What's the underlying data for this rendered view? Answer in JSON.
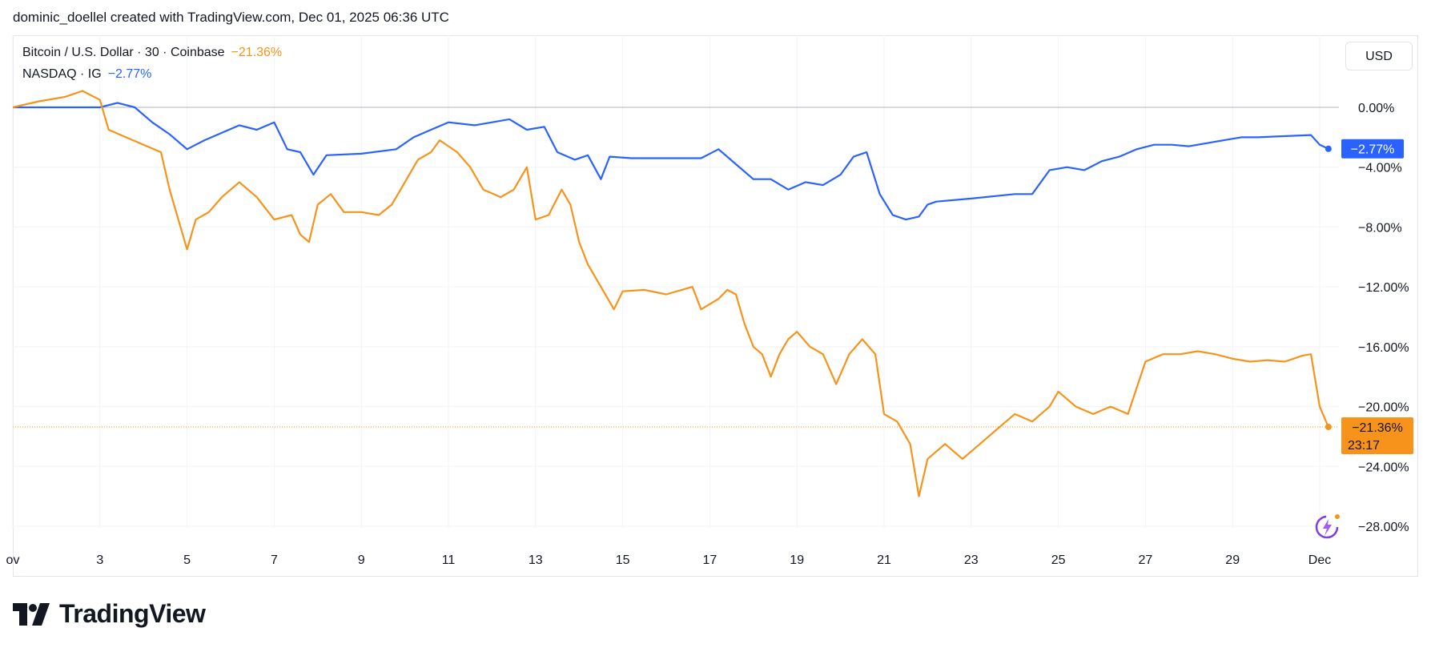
{
  "header": {
    "credit": "dominic_doellel created with TradingView.com, Dec 01, 2025 06:36 UTC"
  },
  "legend": {
    "btc_symbol": "Bitcoin / U.S. Dollar · 30 · Coinbase",
    "btc_change": "−21.36%",
    "ndx_symbol": "NASDAQ · IG",
    "ndx_change": "−2.77%"
  },
  "currency_button": {
    "label": "USD"
  },
  "price_labels": {
    "ndx_value": "−2.77%",
    "btc_value": "−21.36%",
    "btc_countdown": "23:17"
  },
  "footer": {
    "brand": "TradingView"
  },
  "colors": {
    "btc": "#f7931a",
    "ndx": "#2962ff",
    "zero_line": "#b2b5be",
    "grid": "#f0f3fa"
  },
  "icons": {
    "logo": "tradingview-logo-icon",
    "assistant": "ai-sparkle-icon"
  },
  "chart_data": {
    "type": "line",
    "x_unit": "date (Nov–Dec 2025)",
    "y_unit": "percent change",
    "ylim": [
      -28,
      0
    ],
    "y_ticks": [
      "0.00%",
      "−4.00%",
      "−8.00%",
      "−12.00%",
      "−16.00%",
      "−20.00%",
      "−24.00%",
      "−28.00%"
    ],
    "y_tick_values": [
      0,
      -4,
      -8,
      -12,
      -16,
      -20,
      -24,
      -28
    ],
    "x_ticks": [
      "ov",
      "3",
      "5",
      "7",
      "9",
      "11",
      "13",
      "15",
      "17",
      "19",
      "21",
      "23",
      "25",
      "27",
      "29",
      "Dec"
    ],
    "x_tick_days": [
      1,
      3,
      5,
      7,
      9,
      11,
      13,
      15,
      17,
      19,
      21,
      23,
      25,
      27,
      29,
      31
    ],
    "grid": true,
    "series": [
      {
        "name": "Bitcoin / U.S. Dollar · 30 · Coinbase",
        "color": "#f7931a",
        "points": [
          [
            1.0,
            0.0
          ],
          [
            1.6,
            0.4
          ],
          [
            2.2,
            0.7
          ],
          [
            2.6,
            1.1
          ],
          [
            3.0,
            0.5
          ],
          [
            3.2,
            -1.5
          ],
          [
            3.6,
            -2.0
          ],
          [
            4.0,
            -2.5
          ],
          [
            4.4,
            -3.0
          ],
          [
            4.6,
            -5.5
          ],
          [
            4.8,
            -7.5
          ],
          [
            5.0,
            -9.5
          ],
          [
            5.2,
            -7.5
          ],
          [
            5.5,
            -7.0
          ],
          [
            5.8,
            -6.0
          ],
          [
            6.2,
            -5.0
          ],
          [
            6.6,
            -6.0
          ],
          [
            7.0,
            -7.5
          ],
          [
            7.4,
            -7.2
          ],
          [
            7.6,
            -8.5
          ],
          [
            7.8,
            -9.0
          ],
          [
            8.0,
            -6.5
          ],
          [
            8.3,
            -5.8
          ],
          [
            8.6,
            -7.0
          ],
          [
            9.0,
            -7.0
          ],
          [
            9.4,
            -7.2
          ],
          [
            9.7,
            -6.5
          ],
          [
            10.0,
            -5.0
          ],
          [
            10.3,
            -3.5
          ],
          [
            10.6,
            -3.0
          ],
          [
            10.8,
            -2.2
          ],
          [
            11.2,
            -3.0
          ],
          [
            11.5,
            -4.0
          ],
          [
            11.8,
            -5.5
          ],
          [
            12.2,
            -6.0
          ],
          [
            12.5,
            -5.5
          ],
          [
            12.8,
            -4.0
          ],
          [
            13.0,
            -7.5
          ],
          [
            13.3,
            -7.2
          ],
          [
            13.6,
            -5.5
          ],
          [
            13.8,
            -6.5
          ],
          [
            14.0,
            -9.0
          ],
          [
            14.2,
            -10.5
          ],
          [
            14.5,
            -12.0
          ],
          [
            14.8,
            -13.5
          ],
          [
            15.0,
            -12.3
          ],
          [
            15.5,
            -12.2
          ],
          [
            16.0,
            -12.5
          ],
          [
            16.6,
            -12.0
          ],
          [
            16.8,
            -13.5
          ],
          [
            17.2,
            -12.8
          ],
          [
            17.4,
            -12.2
          ],
          [
            17.6,
            -12.5
          ],
          [
            17.8,
            -14.5
          ],
          [
            18.0,
            -16.0
          ],
          [
            18.2,
            -16.5
          ],
          [
            18.4,
            -18.0
          ],
          [
            18.6,
            -16.5
          ],
          [
            18.8,
            -15.5
          ],
          [
            19.0,
            -15.0
          ],
          [
            19.3,
            -16.0
          ],
          [
            19.6,
            -16.5
          ],
          [
            19.9,
            -18.5
          ],
          [
            20.2,
            -16.5
          ],
          [
            20.5,
            -15.5
          ],
          [
            20.8,
            -16.5
          ],
          [
            21.0,
            -20.5
          ],
          [
            21.3,
            -21.0
          ],
          [
            21.6,
            -22.5
          ],
          [
            21.8,
            -26.0
          ],
          [
            22.0,
            -23.5
          ],
          [
            22.4,
            -22.5
          ],
          [
            22.8,
            -23.5
          ],
          [
            23.2,
            -22.5
          ],
          [
            23.6,
            -21.5
          ],
          [
            24.0,
            -20.5
          ],
          [
            24.4,
            -21.0
          ],
          [
            24.8,
            -20.0
          ],
          [
            25.0,
            -19.0
          ],
          [
            25.4,
            -20.0
          ],
          [
            25.8,
            -20.5
          ],
          [
            26.2,
            -20.0
          ],
          [
            26.6,
            -20.5
          ],
          [
            27.0,
            -17.0
          ],
          [
            27.4,
            -16.5
          ],
          [
            27.8,
            -16.5
          ],
          [
            28.2,
            -16.3
          ],
          [
            28.6,
            -16.5
          ],
          [
            29.0,
            -16.8
          ],
          [
            29.4,
            -17.0
          ],
          [
            29.8,
            -16.9
          ],
          [
            30.2,
            -17.0
          ],
          [
            30.6,
            -16.6
          ],
          [
            30.8,
            -16.5
          ],
          [
            31.0,
            -20.0
          ],
          [
            31.2,
            -21.36
          ]
        ]
      },
      {
        "name": "NASDAQ · IG",
        "color": "#2962ff",
        "points": [
          [
            1.0,
            0.0
          ],
          [
            3.0,
            0.0
          ],
          [
            3.4,
            0.3
          ],
          [
            3.8,
            0.0
          ],
          [
            4.2,
            -1.0
          ],
          [
            4.6,
            -1.8
          ],
          [
            5.0,
            -2.8
          ],
          [
            5.4,
            -2.2
          ],
          [
            5.8,
            -1.7
          ],
          [
            6.2,
            -1.2
          ],
          [
            6.6,
            -1.5
          ],
          [
            7.0,
            -1.0
          ],
          [
            7.3,
            -2.8
          ],
          [
            7.6,
            -3.0
          ],
          [
            7.9,
            -4.5
          ],
          [
            8.2,
            -3.2
          ],
          [
            9.0,
            -3.1
          ],
          [
            9.8,
            -2.8
          ],
          [
            10.2,
            -2.0
          ],
          [
            10.6,
            -1.5
          ],
          [
            11.0,
            -1.0
          ],
          [
            11.6,
            -1.2
          ],
          [
            12.0,
            -1.0
          ],
          [
            12.4,
            -0.8
          ],
          [
            12.8,
            -1.5
          ],
          [
            13.2,
            -1.3
          ],
          [
            13.5,
            -3.0
          ],
          [
            13.9,
            -3.5
          ],
          [
            14.2,
            -3.2
          ],
          [
            14.5,
            -4.8
          ],
          [
            14.7,
            -3.3
          ],
          [
            15.2,
            -3.4
          ],
          [
            16.0,
            -3.4
          ],
          [
            16.8,
            -3.4
          ],
          [
            17.2,
            -2.8
          ],
          [
            17.6,
            -3.8
          ],
          [
            18.0,
            -4.8
          ],
          [
            18.4,
            -4.8
          ],
          [
            18.8,
            -5.5
          ],
          [
            19.2,
            -5.0
          ],
          [
            19.6,
            -5.2
          ],
          [
            20.0,
            -4.5
          ],
          [
            20.3,
            -3.3
          ],
          [
            20.6,
            -3.0
          ],
          [
            20.9,
            -5.8
          ],
          [
            21.2,
            -7.2
          ],
          [
            21.5,
            -7.5
          ],
          [
            21.8,
            -7.3
          ],
          [
            22.0,
            -6.5
          ],
          [
            22.2,
            -6.3
          ],
          [
            23.0,
            -6.1
          ],
          [
            24.0,
            -5.8
          ],
          [
            24.4,
            -5.8
          ],
          [
            24.8,
            -4.2
          ],
          [
            25.2,
            -4.0
          ],
          [
            25.6,
            -4.2
          ],
          [
            26.0,
            -3.6
          ],
          [
            26.4,
            -3.3
          ],
          [
            26.8,
            -2.8
          ],
          [
            27.2,
            -2.5
          ],
          [
            27.6,
            -2.5
          ],
          [
            28.0,
            -2.6
          ],
          [
            28.4,
            -2.4
          ],
          [
            28.8,
            -2.2
          ],
          [
            29.2,
            -2.0
          ],
          [
            29.6,
            -2.0
          ],
          [
            30.0,
            -1.95
          ],
          [
            30.4,
            -1.9
          ],
          [
            30.8,
            -1.85
          ],
          [
            31.0,
            -2.5
          ],
          [
            31.2,
            -2.77
          ]
        ]
      }
    ]
  }
}
